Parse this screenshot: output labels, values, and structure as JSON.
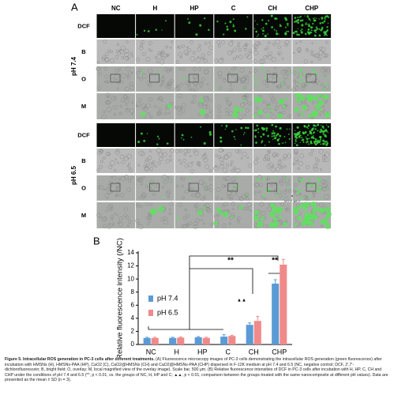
{
  "panel_a": {
    "label": "A",
    "columns": [
      "NC",
      "H",
      "HP",
      "C",
      "CH",
      "CHP"
    ],
    "groups": [
      {
        "label": "pH 7.4",
        "rows": [
          "DCF",
          "B",
          "O",
          "M"
        ]
      },
      {
        "label": "pH 6.5",
        "rows": [
          "DCF",
          "B",
          "O",
          "M"
        ]
      }
    ],
    "scale_bar": "500 μm"
  },
  "chart_data": {
    "type": "bar",
    "panel_label": "B",
    "y_label": "Relative fluorescence intensity (/NC)",
    "categories": [
      "NC",
      "H",
      "HP",
      "C",
      "CH",
      "CHP"
    ],
    "series": [
      {
        "name": "pH 7.4",
        "color": "#5b9bd5",
        "values": [
          1.0,
          1.0,
          1.1,
          1.2,
          3.0,
          9.3
        ],
        "errors": [
          0.1,
          0.1,
          0.1,
          0.3,
          0.3,
          0.6
        ]
      },
      {
        "name": "pH 6.5",
        "color": "#f08a8a",
        "values": [
          1.0,
          1.05,
          1.0,
          1.3,
          3.6,
          12.2
        ],
        "errors": [
          0.1,
          0.1,
          0.1,
          0.1,
          0.7,
          0.8
        ]
      }
    ],
    "ylim": [
      0,
      14
    ],
    "yticks": [
      0,
      2,
      4,
      6,
      8,
      10,
      12,
      14
    ],
    "annotations": [
      "**",
      "**",
      "▲▲"
    ]
  },
  "caption": {
    "title": "Figure 5. Intracellular ROS generation in PC-3 cells after different treatments.",
    "text": "(A) Fluorescence microscopy images of PC-3 cells demonstrating the intracellular ROS generation (green fluorescence) after incubation with HMSNs (H), HMSNs-PAA (HP), CaO2 (C), CaO2@HMSNs (CH) and CaO2@HMSNs-PAA (CHP) dispersed in F-12K medium at pH 7.4 and 6.5 (NC, negative control; DCF, 2',7'-dichlorofluorescein; B, bright field; O, overlay; M, local magnified view of the overlay image). Scale bar, 500 μm. (B) Relative fluorescence intensities of DCF in PC-3 cells after incubation with H, HP, C, CH and CHP under the conditions of pH 7.4 and 6.5 (**, p < 0.01, vs. the groups of NC, H, HP and C; ▲▲, p < 0.01, comparison between the groups treated with the same nanocomposite at different pH values). Data are presented as the mean ± SD (n = 3)."
  }
}
